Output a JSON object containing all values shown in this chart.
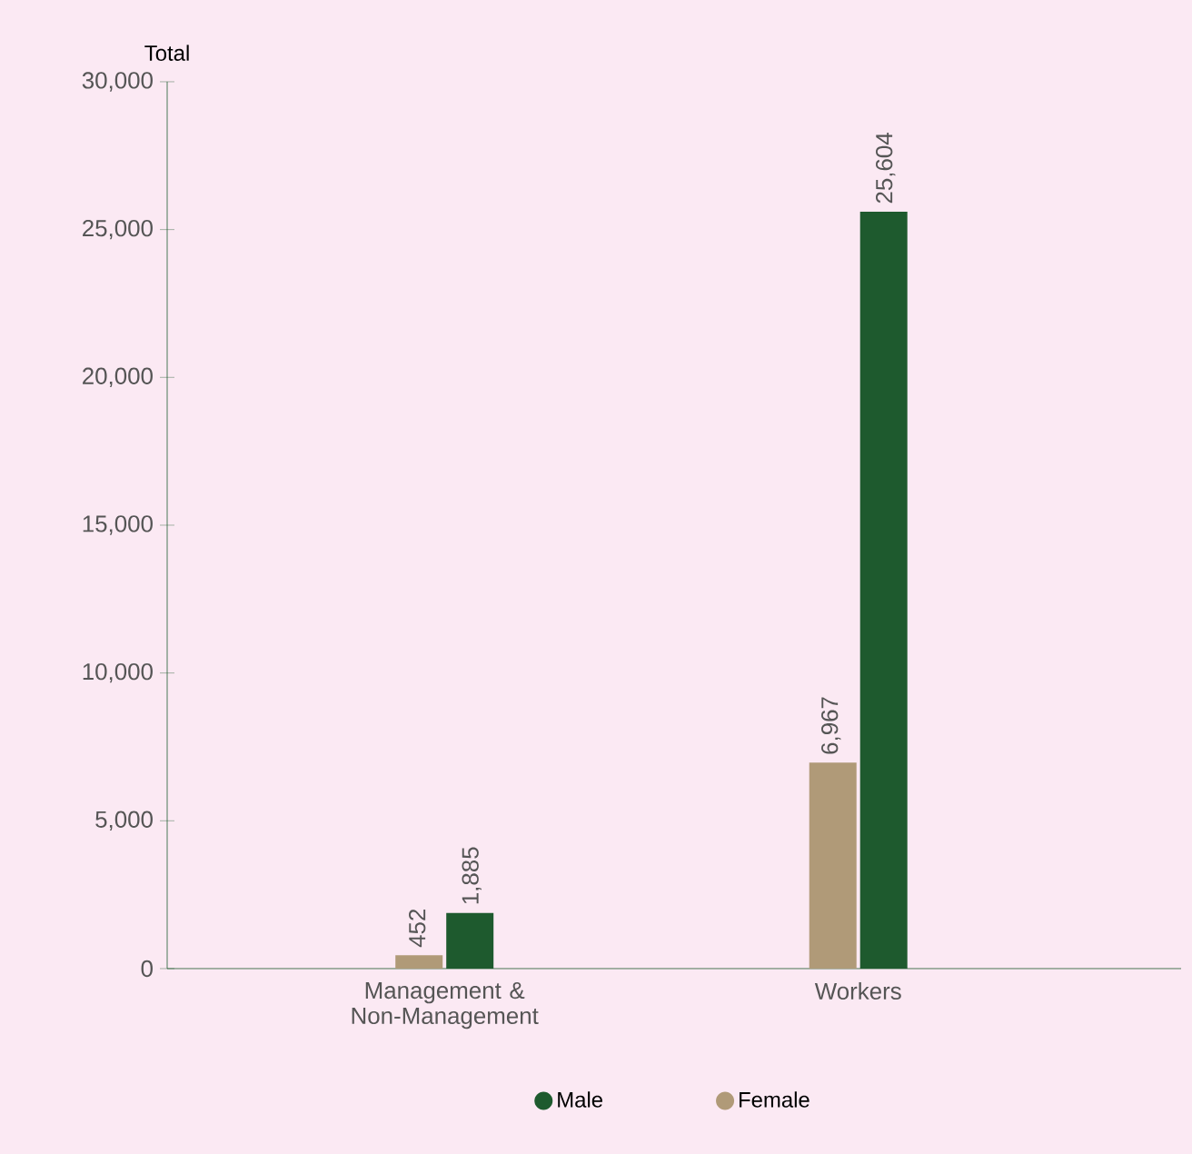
{
  "chart_data": {
    "type": "bar",
    "ylabel": "Total",
    "categories": [
      "Management & Non-Management",
      "Workers"
    ],
    "series": [
      {
        "name": "Female",
        "color": "#b09a78",
        "values": [
          452,
          6967
        ]
      },
      {
        "name": "Male",
        "color": "#1e5a2e",
        "values": [
          1885,
          25604
        ]
      }
    ],
    "ylim": [
      0,
      30000
    ],
    "yticks": [
      {
        "value": 0,
        "label": "0"
      },
      {
        "value": 5000,
        "label": "5,000"
      },
      {
        "value": 10000,
        "label": "10,000"
      },
      {
        "value": 15000,
        "label": "15,000"
      },
      {
        "value": 20000,
        "label": "20,000"
      },
      {
        "value": 25000,
        "label": "25,000"
      },
      {
        "value": 30000,
        "label": "30,000"
      }
    ],
    "value_labels": [
      [
        "452",
        "6,967"
      ],
      [
        "1,885",
        "25,604"
      ]
    ],
    "legend": "bottom",
    "grid": false
  }
}
